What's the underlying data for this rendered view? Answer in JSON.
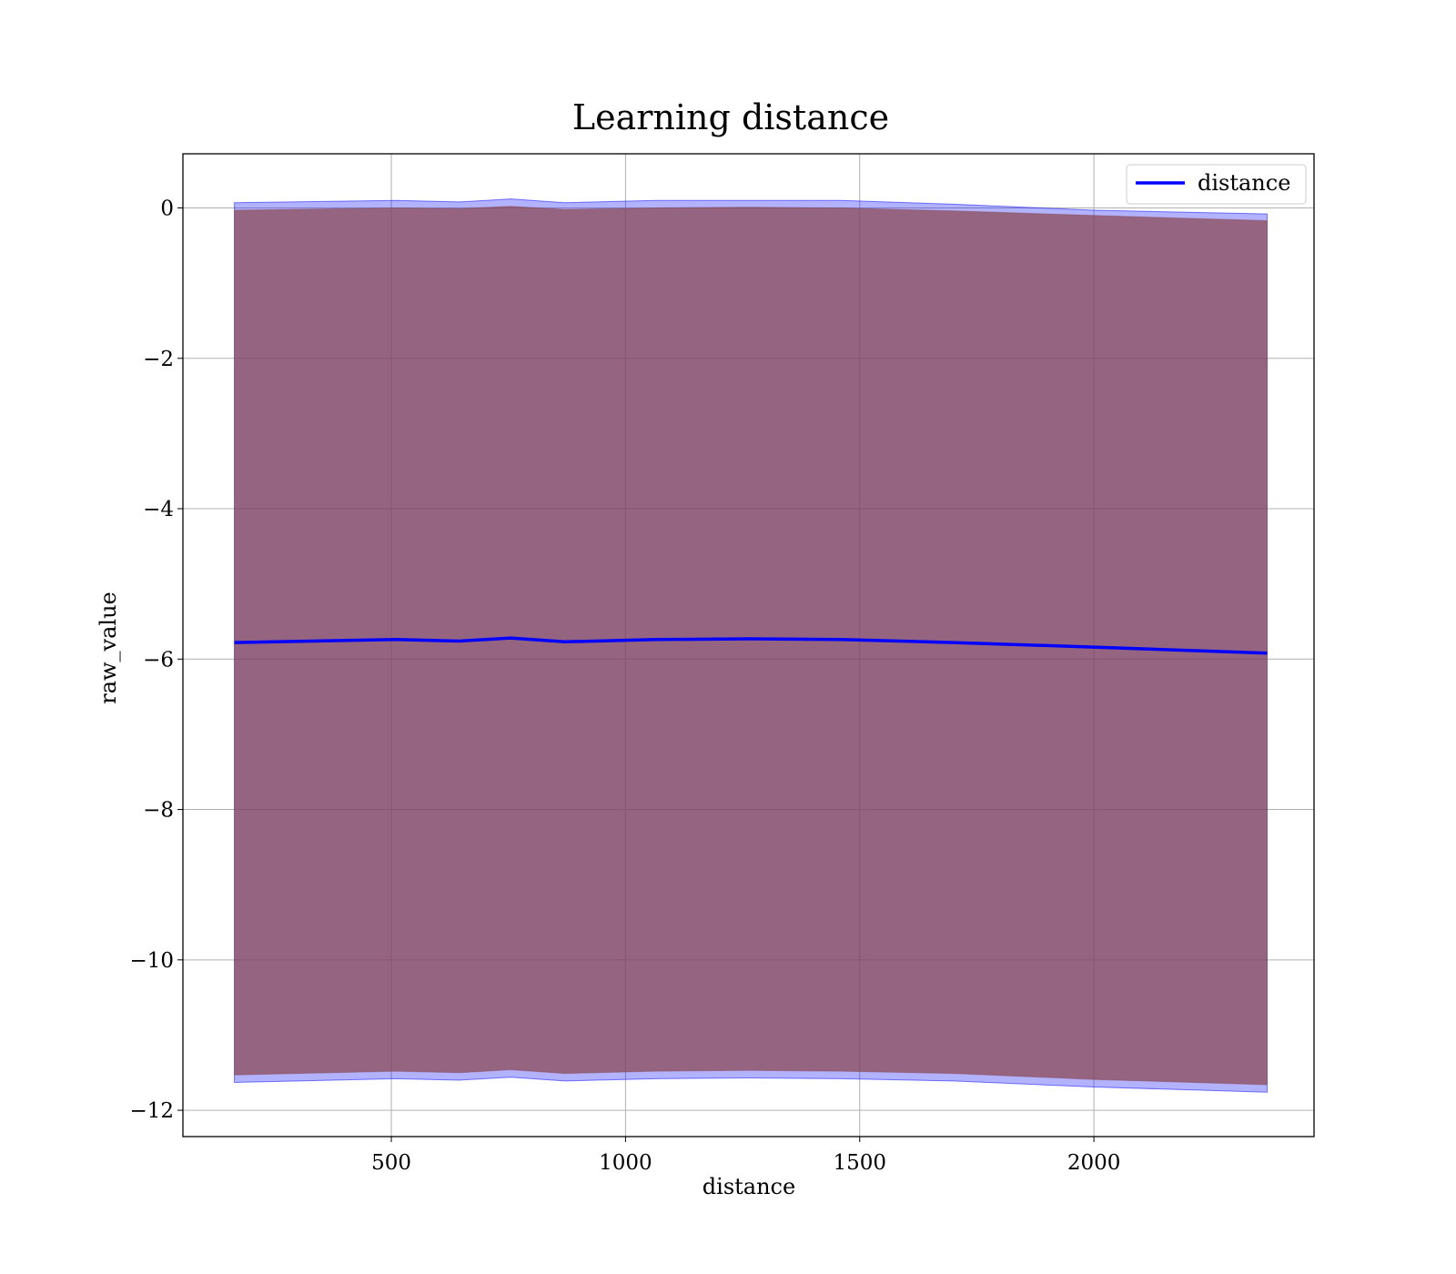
{
  "chart_data": {
    "type": "line",
    "title": "Learning distance",
    "xlabel": "distance",
    "ylabel": "raw_value",
    "xlim": [
      55,
      2470
    ],
    "ylim": [
      -12.35,
      0.72
    ],
    "xticks": [
      500,
      1000,
      1500,
      2000
    ],
    "xtick_labels": [
      "500",
      "1000",
      "1500",
      "2000"
    ],
    "yticks": [
      0,
      -2,
      -4,
      -6,
      -8,
      -10,
      -12
    ],
    "ytick_labels": [
      "0",
      "−2",
      "−4",
      "−6",
      "−8",
      "−10",
      "−12"
    ],
    "grid": true,
    "legend": {
      "position": "top-right",
      "entries": [
        "distance"
      ]
    },
    "series": [
      {
        "name": "distance",
        "color": "#0000ff",
        "x": [
          165,
          510,
          645,
          755,
          870,
          1065,
          1265,
          1460,
          1700,
          2000,
          2370
        ],
        "y": [
          -5.78,
          -5.74,
          -5.76,
          -5.72,
          -5.77,
          -5.74,
          -5.73,
          -5.74,
          -5.78,
          -5.84,
          -5.92
        ]
      }
    ],
    "bands": [
      {
        "color": "#0000ff",
        "opacity": 0.3,
        "upper": [
          0.07,
          0.1,
          0.08,
          0.12,
          0.07,
          0.1,
          0.1,
          0.1,
          0.05,
          -0.03,
          -0.08
        ],
        "lower": [
          -11.63,
          -11.58,
          -11.6,
          -11.56,
          -11.61,
          -11.58,
          -11.57,
          -11.58,
          -11.61,
          -11.69,
          -11.76
        ]
      },
      {
        "color": "#8b4a55",
        "opacity": 0.75,
        "upper": [
          -0.03,
          0.0,
          -0.01,
          0.02,
          -0.02,
          0.0,
          0.01,
          0.0,
          -0.04,
          -0.1,
          -0.17
        ],
        "lower": [
          -11.53,
          -11.48,
          -11.5,
          -11.46,
          -11.51,
          -11.48,
          -11.47,
          -11.48,
          -11.51,
          -11.59,
          -11.66
        ]
      }
    ]
  }
}
